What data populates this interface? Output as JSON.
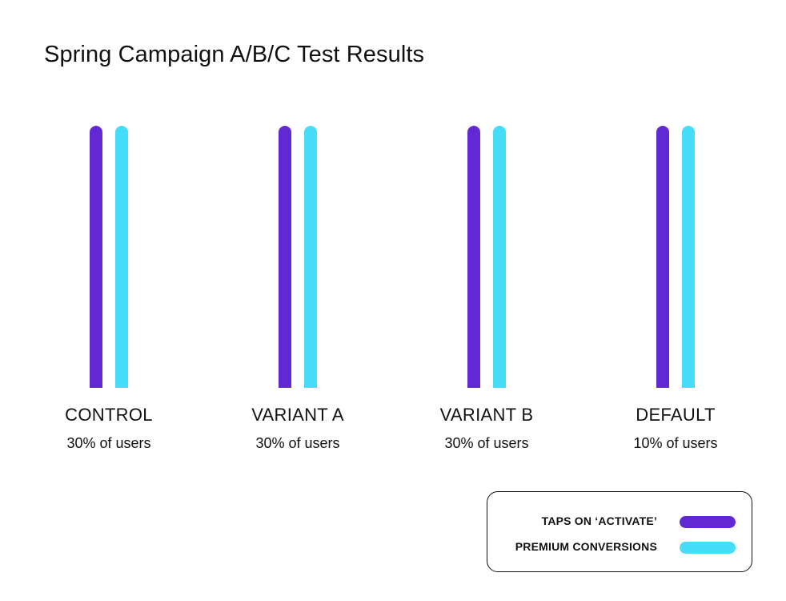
{
  "chart_data": {
    "type": "bar",
    "title": "Spring Campaign A/B/C Test Results",
    "categories": [
      "CONTROL",
      "VARIANT A",
      "VARIANT B",
      "DEFAULT"
    ],
    "category_sublabels": [
      "30% of users",
      "30% of users",
      "30% of users",
      "10% of users"
    ],
    "series": [
      {
        "name": "TAPS ON ‘ACTIVATE’",
        "color": "#6128d4",
        "values": [
          1,
          1,
          1,
          1
        ]
      },
      {
        "name": "PREMIUM CONVERSIONS",
        "color": "#45ddf9",
        "values": [
          1,
          1,
          1,
          1
        ]
      }
    ],
    "ylim": [
      0,
      1
    ],
    "grid": false,
    "legend_position": "bottom-right"
  }
}
